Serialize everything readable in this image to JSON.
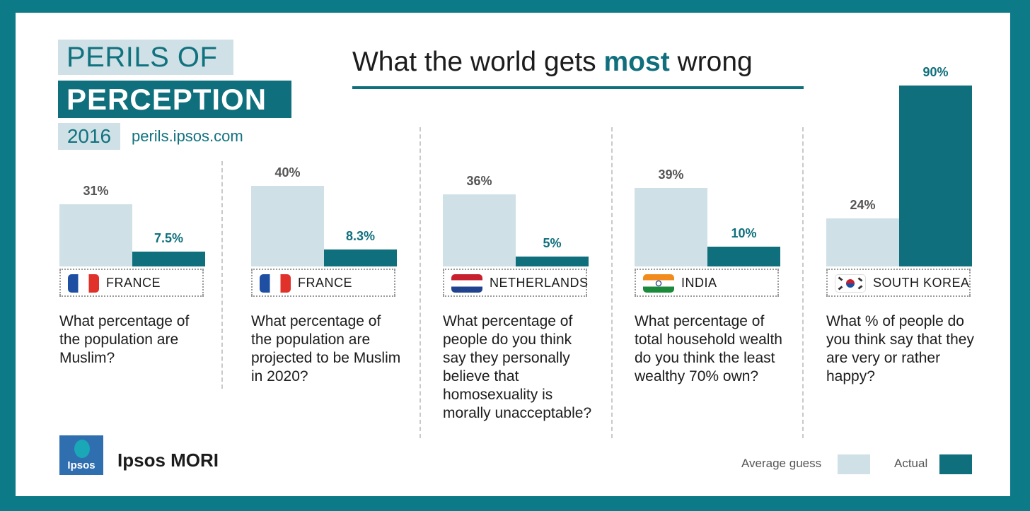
{
  "brand": {
    "line1": "PERILS OF",
    "line2": "PERCEPTION",
    "year": "2016",
    "url": "perils.ipsos.com"
  },
  "header": {
    "title_pre": "What the world gets ",
    "title_emph": "most",
    "title_post": " wrong"
  },
  "colors": {
    "average_guess": "#cfe1e6",
    "actual": "#0f6f7c"
  },
  "chart_data": {
    "type": "bar",
    "title": "What the world gets most wrong",
    "series": [
      {
        "name": "Average guess",
        "values": [
          31,
          40,
          36,
          39,
          24
        ],
        "labels": [
          "31%",
          "40%",
          "36%",
          "39%",
          "24%"
        ]
      },
      {
        "name": "Actual",
        "values": [
          7.5,
          8.3,
          5,
          10,
          90
        ],
        "labels": [
          "7.5%",
          "8.3%",
          "5%",
          "10%",
          "90%"
        ]
      }
    ],
    "categories": [
      "FRANCE",
      "FRANCE",
      "NETHERLANDS",
      "INDIA",
      "SOUTH KOREA"
    ],
    "ylim": [
      0,
      90
    ],
    "legend": "bottom-right"
  },
  "panels": [
    {
      "country": "FRANCE",
      "flag": "france-flag",
      "question": "What percentage of the population are Muslim?"
    },
    {
      "country": "FRANCE",
      "flag": "france-flag",
      "question": "What percentage of the population are projected to be Muslim in 2020?"
    },
    {
      "country": "NETHERLANDS",
      "flag": "netherlands-flag",
      "question": "What percentage of people do you think say they personally believe that homosexuality is morally unacceptable?"
    },
    {
      "country": "INDIA",
      "flag": "india-flag",
      "question": "What percentage of total household wealth do you think the least wealthy 70% own?"
    },
    {
      "country": "SOUTH KOREA",
      "flag": "south-korea-flag",
      "question": "What % of people do you think say that they are very or rather happy?"
    }
  ],
  "footer": {
    "logo_text": "Ipsos",
    "org_name": "Ipsos MORI",
    "legend_guess": "Average guess",
    "legend_actual": "Actual"
  }
}
